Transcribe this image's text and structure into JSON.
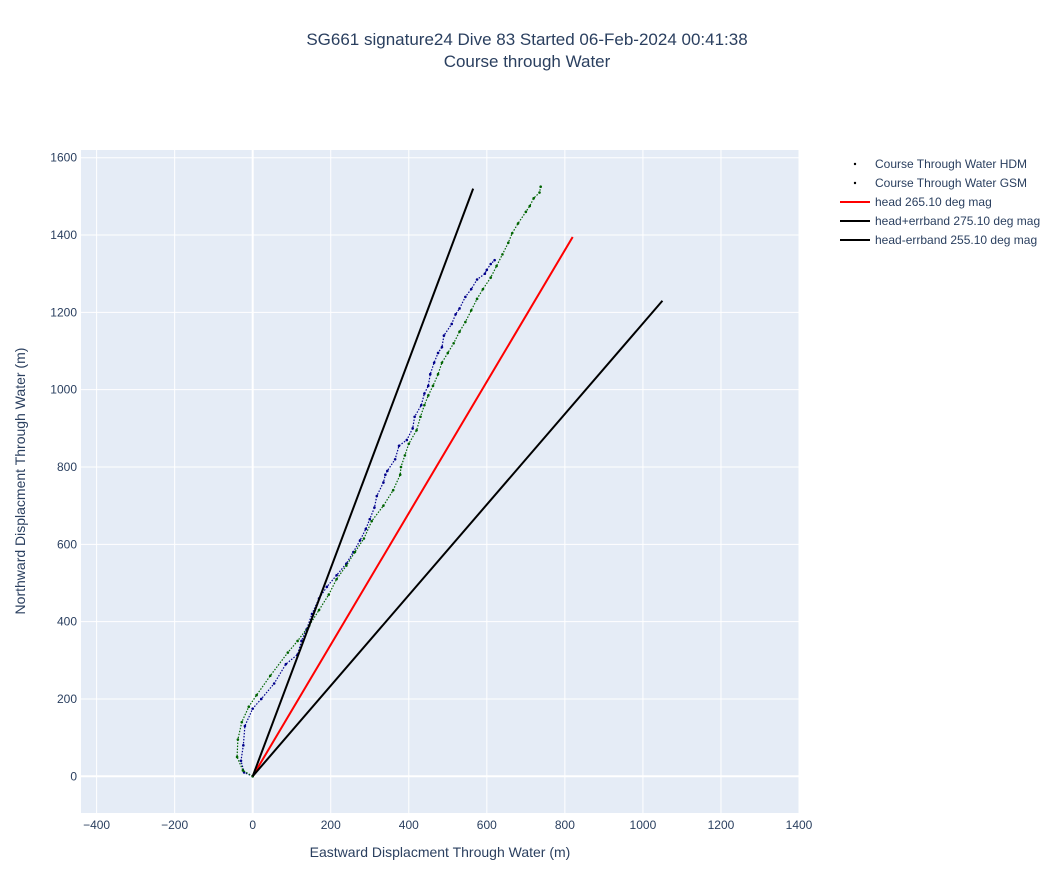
{
  "chart_data": {
    "type": "scatter",
    "title": "SG661 signature24 Dive 83 Started 06-Feb-2024 00:41:38",
    "subtitle": "Course through Water",
    "xlabel": "Eastward Displacment Through Water (m)",
    "ylabel": "Northward Displacment Through Water (m)",
    "xlim": [
      -440,
      1400
    ],
    "ylim": [
      -95,
      1620
    ],
    "xticks": [
      -400,
      -200,
      0,
      200,
      400,
      600,
      800,
      1000,
      1200,
      1400
    ],
    "yticks": [
      0,
      200,
      400,
      600,
      800,
      1000,
      1200,
      1400,
      1600
    ],
    "xtick_labels": [
      "−400",
      "−200",
      "0",
      "200",
      "400",
      "600",
      "800",
      "1000",
      "1200",
      "1400"
    ],
    "ytick_labels": [
      "0",
      "200",
      "400",
      "600",
      "800",
      "1000",
      "1200",
      "1400",
      "1600"
    ],
    "grid": true,
    "legend_position": "top-right",
    "series": [
      {
        "name": "Course Through Water HDM",
        "mode": "markers",
        "color": "#00008b",
        "x": [
          0,
          -22,
          -30,
          -24,
          -20,
          0,
          22,
          55,
          85,
          115,
          125,
          138,
          152,
          170,
          190,
          215,
          240,
          258,
          275,
          290,
          300,
          312,
          318,
          335,
          340,
          345,
          365,
          375,
          395,
          410,
          415,
          432,
          440,
          450,
          455,
          465,
          475,
          485,
          490,
          510,
          520,
          530,
          545,
          560,
          575,
          595,
          600,
          610,
          620
        ],
        "y": [
          0,
          10,
          40,
          80,
          130,
          175,
          200,
          240,
          290,
          315,
          350,
          380,
          420,
          460,
          490,
          520,
          550,
          580,
          610,
          640,
          665,
          695,
          725,
          760,
          780,
          790,
          820,
          855,
          870,
          900,
          930,
          960,
          990,
          1010,
          1040,
          1070,
          1095,
          1110,
          1140,
          1170,
          1195,
          1210,
          1240,
          1260,
          1285,
          1300,
          1310,
          1325,
          1335
        ]
      },
      {
        "name": "Course Through Water GSM",
        "mode": "markers",
        "color": "#006400",
        "x": [
          0,
          -25,
          -40,
          -38,
          -28,
          -10,
          10,
          45,
          90,
          115,
          145,
          170,
          195,
          215,
          240,
          262,
          285,
          305,
          335,
          360,
          378,
          380,
          390,
          400,
          420,
          430,
          440,
          450,
          462,
          475,
          485,
          500,
          515,
          530,
          545,
          560,
          575,
          590,
          610,
          625,
          640,
          655,
          665,
          680,
          700,
          710,
          720,
          735,
          738
        ],
        "y": [
          0,
          15,
          50,
          95,
          140,
          180,
          210,
          260,
          320,
          350,
          390,
          430,
          470,
          510,
          545,
          580,
          615,
          660,
          700,
          740,
          780,
          800,
          830,
          860,
          895,
          930,
          960,
          985,
          1010,
          1040,
          1070,
          1095,
          1120,
          1150,
          1175,
          1205,
          1235,
          1260,
          1290,
          1320,
          1350,
          1380,
          1405,
          1430,
          1460,
          1475,
          1495,
          1510,
          1525
        ]
      },
      {
        "name": "head 265.10 deg mag",
        "mode": "line",
        "color": "#ff0000",
        "x": [
          0,
          820
        ],
        "y": [
          0,
          1395
        ]
      },
      {
        "name": "head+errband 275.10 deg mag",
        "mode": "line",
        "color": "#000000",
        "x": [
          0,
          565
        ],
        "y": [
          0,
          1520
        ]
      },
      {
        "name": "head-errband 255.10 deg mag",
        "mode": "line",
        "color": "#000000",
        "x": [
          0,
          1050
        ],
        "y": [
          0,
          1230
        ]
      }
    ]
  }
}
